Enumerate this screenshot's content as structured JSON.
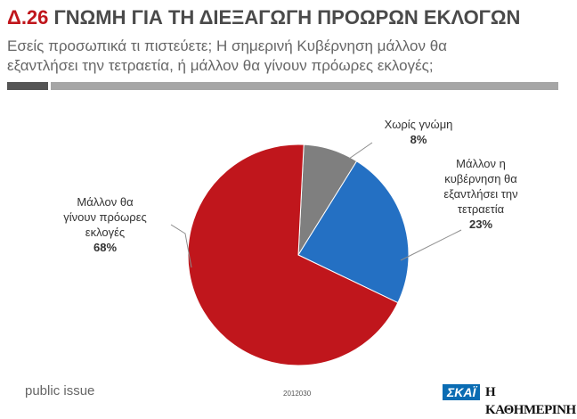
{
  "header": {
    "number": "Δ.26",
    "title": "ΓΝΩΜΗ ΓΙΑ ΤΗ ΔΙΕΞΑΓΩΓΗ ΠΡΟΩΡΩΝ ΕΚΛΟΓΩΝ",
    "subtitle_line1": "Εσείς προσωπικά τι πιστεύετε; Η σημερινή Κυβέρνηση μάλλον θα",
    "subtitle_line2": "εξαντλήσει την τετραετία, ή μάλλον θα γίνουν πρόωρες εκλογές;"
  },
  "chart_data": {
    "type": "pie",
    "slices": [
      {
        "label": "Χωρίς γνώμη",
        "value": 8,
        "value_label": "8%",
        "color": "#7f7f7f"
      },
      {
        "label": "Μάλλον η κυβέρνηση θα εξαντλήσει την τετραετία",
        "value": 23,
        "value_label": "23%",
        "color": "#2470c3"
      },
      {
        "label": "Μάλλον θα γίνουν πρόωρες εκλογές",
        "value": 68,
        "value_label": "68%",
        "color": "#c0161c"
      }
    ]
  },
  "labels": {
    "gray_l1": "Χωρίς γνώμη",
    "blue_l1": "Μάλλον η",
    "blue_l2": "κυβέρνηση θα",
    "blue_l3": "εξαντλήσει την",
    "blue_l4": "τετραετία",
    "red_l1": "Μάλλον θα",
    "red_l2": "γίνουν πρόωρες",
    "red_l3": "εκλογές"
  },
  "footer": {
    "brand": "public issue",
    "code": "2012030",
    "logo_skai": "ΣΚΑΪ",
    "logo_kathimerini": "Η ΚΑΘΗΜΕΡΙΝΗ"
  }
}
